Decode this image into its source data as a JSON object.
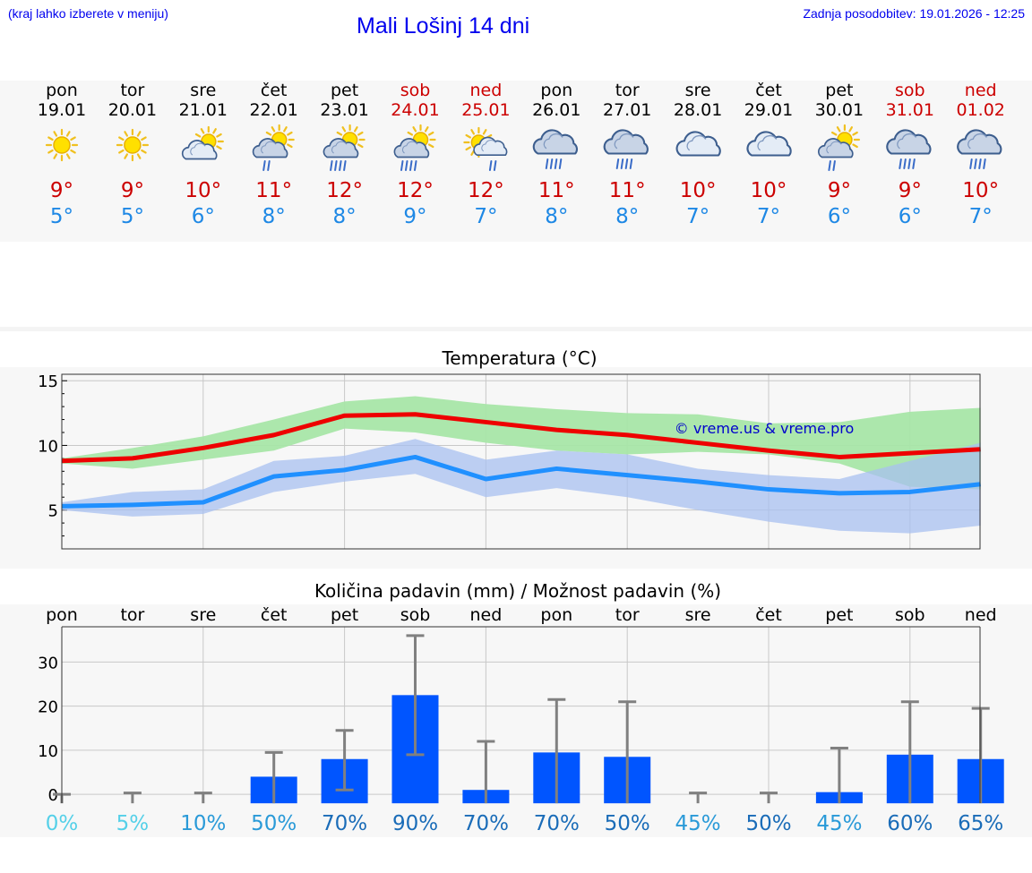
{
  "header": {
    "menu_hint": "(kraj lahko izberete v meniju)",
    "title": "Mali Lošinj 14 dni",
    "updated": "Zadnja posodobitev: 19.01.2026 - 12:25"
  },
  "colors": {
    "link": "#0000ee",
    "weekend": "#cc0000",
    "tmax": "#cc0000",
    "tmin": "#1e88e5",
    "max_line": "#ee0000",
    "min_line": "#2090ff",
    "max_band": "#a8e6a8",
    "min_band": "#a8c0f0",
    "bar": "#0055ff",
    "err": "#808080"
  },
  "days": [
    {
      "dow": "pon",
      "date": "19.01",
      "tmax": "9°",
      "tmin": "5°",
      "icon": "sun-icon",
      "weekend": false
    },
    {
      "dow": "tor",
      "date": "20.01",
      "tmax": "9°",
      "tmin": "5°",
      "icon": "sun-icon",
      "weekend": false
    },
    {
      "dow": "sre",
      "date": "21.01",
      "tmax": "10°",
      "tmin": "6°",
      "icon": "sun-cloud-icon",
      "weekend": false
    },
    {
      "dow": "čet",
      "date": "22.01",
      "tmax": "11°",
      "tmin": "8°",
      "icon": "sun-cloud-rain-icon",
      "weekend": false
    },
    {
      "dow": "pet",
      "date": "23.01",
      "tmax": "12°",
      "tmin": "8°",
      "icon": "sun-cloud-heavy-rain-icon",
      "weekend": false
    },
    {
      "dow": "sob",
      "date": "24.01",
      "tmax": "12°",
      "tmin": "9°",
      "icon": "sun-cloud-heavy-rain-icon",
      "weekend": true
    },
    {
      "dow": "ned",
      "date": "25.01",
      "tmax": "12°",
      "tmin": "7°",
      "icon": "sun-cloud-light-rain-icon",
      "weekend": true
    },
    {
      "dow": "pon",
      "date": "26.01",
      "tmax": "11°",
      "tmin": "8°",
      "icon": "cloud-heavy-rain-icon",
      "weekend": false
    },
    {
      "dow": "tor",
      "date": "27.01",
      "tmax": "11°",
      "tmin": "8°",
      "icon": "cloud-heavy-rain-icon",
      "weekend": false
    },
    {
      "dow": "sre",
      "date": "28.01",
      "tmax": "10°",
      "tmin": "7°",
      "icon": "cloud-icon",
      "weekend": false
    },
    {
      "dow": "čet",
      "date": "29.01",
      "tmax": "10°",
      "tmin": "7°",
      "icon": "cloud-icon",
      "weekend": false
    },
    {
      "dow": "pet",
      "date": "30.01",
      "tmax": "9°",
      "tmin": "6°",
      "icon": "sun-cloud-rain-icon",
      "weekend": false
    },
    {
      "dow": "sob",
      "date": "31.01",
      "tmax": "9°",
      "tmin": "6°",
      "icon": "cloud-heavy-rain-icon",
      "weekend": true
    },
    {
      "dow": "ned",
      "date": "01.02",
      "tmax": "10°",
      "tmin": "7°",
      "icon": "cloud-heavy-rain-icon",
      "weekend": true
    }
  ],
  "chart_data": [
    {
      "type": "line",
      "title": "Temperatura (°C)",
      "watermark": "© vreme.us & vreme.pro",
      "x": [
        0,
        1,
        2,
        3,
        4,
        5,
        6,
        7,
        8,
        9,
        10,
        11,
        12,
        13
      ],
      "ylim": [
        2,
        15.5
      ],
      "yticks": [
        5,
        10,
        15
      ],
      "grid": true,
      "series": [
        {
          "name": "max",
          "values": [
            8.8,
            9.0,
            9.8,
            10.8,
            12.3,
            12.4,
            11.8,
            11.2,
            10.8,
            10.2,
            9.6,
            9.1,
            9.4,
            9.7
          ],
          "band_low": [
            8.6,
            8.2,
            8.9,
            9.6,
            11.3,
            11.0,
            10.2,
            9.6,
            9.3,
            9.5,
            9.3,
            8.6,
            6.8,
            6.6
          ],
          "band_high": [
            9.0,
            9.8,
            10.7,
            12.0,
            13.4,
            13.8,
            13.2,
            12.8,
            12.5,
            12.4,
            11.7,
            11.8,
            12.6,
            12.9
          ]
        },
        {
          "name": "min",
          "values": [
            5.3,
            5.4,
            5.6,
            7.6,
            8.1,
            9.1,
            7.4,
            8.2,
            7.7,
            7.2,
            6.6,
            6.3,
            6.4,
            7.0
          ],
          "band_low": [
            5.0,
            4.5,
            4.7,
            6.4,
            7.2,
            7.8,
            6.0,
            6.7,
            6.0,
            5.0,
            4.1,
            3.4,
            3.2,
            3.8
          ],
          "band_high": [
            5.6,
            6.4,
            6.6,
            8.8,
            9.2,
            10.5,
            8.9,
            9.6,
            9.3,
            8.2,
            7.7,
            7.4,
            8.8,
            10.2
          ]
        }
      ]
    },
    {
      "type": "bar",
      "title": "Količina padavin (mm) / Možnost padavin (%)",
      "categories": [
        "pon",
        "tor",
        "sre",
        "čet",
        "pet",
        "sob",
        "ned",
        "pon",
        "tor",
        "sre",
        "čet",
        "pet",
        "sob",
        "ned"
      ],
      "values": [
        0,
        0,
        0,
        4,
        8,
        22.5,
        1,
        9.5,
        8.5,
        0,
        0,
        0.5,
        9,
        8
      ],
      "err_low": [
        0,
        0,
        0,
        0,
        1,
        9,
        0,
        0,
        0,
        0,
        0,
        0,
        0,
        0
      ],
      "err_high": [
        0,
        0.3,
        0.3,
        9.5,
        14.5,
        36,
        12,
        21.5,
        21,
        0.3,
        0.3,
        10.5,
        21,
        19.5
      ],
      "probability": [
        "0%",
        "5%",
        "10%",
        "50%",
        "70%",
        "90%",
        "70%",
        "70%",
        "50%",
        "45%",
        "50%",
        "45%",
        "60%",
        "65%"
      ],
      "prob_colors": [
        "#55d0e8",
        "#55d0e8",
        "#2a9ad8",
        "#2a9ad8",
        "#1a6cb8",
        "#1a6cb8",
        "#1a6cb8",
        "#1a6cb8",
        "#1a6cb8",
        "#2a9ad8",
        "#1a6cb8",
        "#2a9ad8",
        "#1a6cb8",
        "#1a6cb8"
      ],
      "ylim": [
        -2,
        38
      ],
      "yticks": [
        0,
        10,
        20,
        30
      ],
      "grid": true
    }
  ]
}
